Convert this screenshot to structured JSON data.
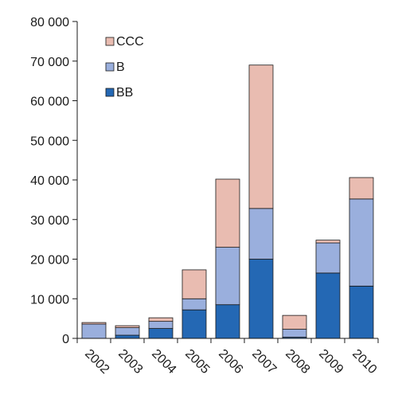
{
  "chart_data": {
    "type": "bar",
    "stacked": true,
    "categories": [
      "2002",
      "2003",
      "2004",
      "2005",
      "2006",
      "2007",
      "2008",
      "2009",
      "2010"
    ],
    "series": [
      {
        "name": "BB",
        "color": "#2468B4",
        "values": [
          0,
          800,
          2500,
          7200,
          8500,
          20000,
          300,
          16500,
          13200
        ]
      },
      {
        "name": "B",
        "color": "#9AAFDD",
        "values": [
          3600,
          1900,
          1800,
          2800,
          14500,
          12800,
          2000,
          7600,
          22000
        ]
      },
      {
        "name": "CCC",
        "color": "#E9BCB1",
        "values": [
          400,
          500,
          900,
          7300,
          17200,
          36200,
          3500,
          700,
          5400
        ]
      }
    ],
    "ylim": [
      0,
      80000
    ],
    "yticks": [
      0,
      10000,
      20000,
      30000,
      40000,
      50000,
      60000,
      70000,
      80000
    ],
    "ytick_labels": [
      "0",
      "10 000",
      "20 000",
      "30 000",
      "40 000",
      "50 000",
      "60 000",
      "70 000",
      "80 000"
    ],
    "legend": {
      "placement": "top-left",
      "entries": [
        "CCC",
        "B",
        "BB"
      ]
    },
    "grid": false,
    "title": "",
    "xlabel": "",
    "ylabel": ""
  }
}
